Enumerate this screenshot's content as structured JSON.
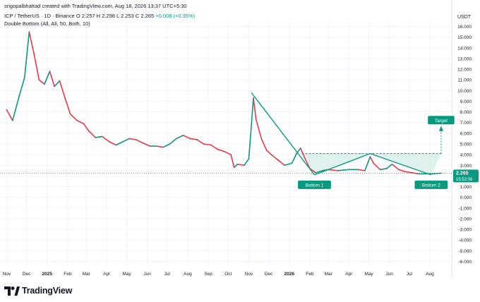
{
  "header": {
    "author_line": "srigopalbhattad created with TradingView.com, Aug 18, 2026 13:37 UTC+5:30",
    "symbol": "ICP / TetherUS · 1D · Binance",
    "ohlc": {
      "o": "O 2.257",
      "h": "H 2.298",
      "l": "L 2.253",
      "c": "C 2.265",
      "change": "+0.008 (+0.35%)"
    },
    "indicator": "Double Bottom (All, All, 50, Both, 10)"
  },
  "axis": {
    "currency": "USDT"
  },
  "price_label": {
    "value": "2.265",
    "countdown": "15:52:08"
  },
  "branding": {
    "name": "TradingView"
  },
  "colors": {
    "up": "#089981",
    "down": "#f23645",
    "pattern": "#089981",
    "fill": "#d1ede6",
    "label_bg": "#089981"
  },
  "chart_data": {
    "type": "line",
    "y_ticks": [
      "16.000",
      "15.000",
      "14.000",
      "13.000",
      "12.000",
      "11.000",
      "10.000",
      "9.000",
      "8.000",
      "7.000",
      "6.000",
      "5.000",
      "4.000",
      "3.000",
      "2.000",
      "1.000",
      "0.000",
      "-1.000",
      "-2.000",
      "-3.000",
      "-4.000",
      "-5.000",
      "-6.000"
    ],
    "x_ticks": [
      "Nov",
      "Dec",
      "2025",
      "Feb",
      "Mar",
      "Apr",
      "May",
      "Jun",
      "Jul",
      "Aug",
      "Sep",
      "Oct",
      "Nov",
      "Dec",
      "2026",
      "Feb",
      "Mar",
      "Apr",
      "May",
      "Jun",
      "Jul",
      "Aug"
    ],
    "ylim": [
      -6.5,
      16.5
    ],
    "grid": true,
    "price_series": [
      [
        "2024-11-01",
        8.2
      ],
      [
        "2024-11-10",
        7.2
      ],
      [
        "2024-11-20",
        9.5
      ],
      [
        "2024-11-28",
        11.2
      ],
      [
        "2024-12-05",
        15.5
      ],
      [
        "2024-12-12",
        13.5
      ],
      [
        "2024-12-20",
        11.0
      ],
      [
        "2024-12-28",
        10.6
      ],
      [
        "2025-01-05",
        11.8
      ],
      [
        "2025-01-12",
        10.4
      ],
      [
        "2025-01-20",
        10.9
      ],
      [
        "2025-01-28",
        9.3
      ],
      [
        "2025-02-05",
        7.8
      ],
      [
        "2025-02-15",
        7.2
      ],
      [
        "2025-02-25",
        6.9
      ],
      [
        "2025-03-05",
        6.2
      ],
      [
        "2025-03-15",
        5.6
      ],
      [
        "2025-03-25",
        5.7
      ],
      [
        "2025-04-05",
        5.2
      ],
      [
        "2025-04-15",
        4.9
      ],
      [
        "2025-04-25",
        5.2
      ],
      [
        "2025-05-05",
        5.5
      ],
      [
        "2025-05-15",
        5.4
      ],
      [
        "2025-05-25",
        5.1
      ],
      [
        "2025-06-05",
        4.8
      ],
      [
        "2025-06-15",
        4.8
      ],
      [
        "2025-06-25",
        4.7
      ],
      [
        "2025-07-05",
        5.0
      ],
      [
        "2025-07-15",
        5.5
      ],
      [
        "2025-07-25",
        5.8
      ],
      [
        "2025-08-05",
        5.5
      ],
      [
        "2025-08-15",
        5.4
      ],
      [
        "2025-08-25",
        5.0
      ],
      [
        "2025-09-05",
        4.9
      ],
      [
        "2025-09-15",
        4.5
      ],
      [
        "2025-09-25",
        4.3
      ],
      [
        "2025-10-05",
        4.0
      ],
      [
        "2025-10-10",
        2.8
      ],
      [
        "2025-10-15",
        3.1
      ],
      [
        "2025-10-25",
        3.0
      ],
      [
        "2025-11-01",
        3.6
      ],
      [
        "2025-11-05",
        6.8
      ],
      [
        "2025-11-08",
        9.3
      ],
      [
        "2025-11-12",
        7.3
      ],
      [
        "2025-11-20",
        5.5
      ],
      [
        "2025-11-28",
        4.4
      ],
      [
        "2025-12-05",
        4.0
      ],
      [
        "2025-12-15",
        3.5
      ],
      [
        "2025-12-25",
        3.0
      ],
      [
        "2026-01-05",
        3.2
      ],
      [
        "2026-01-12",
        4.1
      ],
      [
        "2026-01-18",
        4.6
      ],
      [
        "2026-01-25",
        3.6
      ],
      [
        "2026-02-01",
        2.7
      ],
      [
        "2026-02-10",
        2.3
      ],
      [
        "2026-02-20",
        2.5
      ],
      [
        "2026-03-01",
        2.6
      ],
      [
        "2026-03-15",
        2.5
      ],
      [
        "2026-04-01",
        2.6
      ],
      [
        "2026-04-15",
        2.6
      ],
      [
        "2026-04-25",
        2.5
      ],
      [
        "2026-05-03",
        3.8
      ],
      [
        "2026-05-08",
        3.2
      ],
      [
        "2026-05-18",
        2.6
      ],
      [
        "2026-05-28",
        2.7
      ],
      [
        "2026-06-05",
        3.1
      ],
      [
        "2026-06-15",
        2.6
      ],
      [
        "2026-06-25",
        2.4
      ],
      [
        "2026-07-05",
        2.3
      ],
      [
        "2026-07-15",
        2.2
      ],
      [
        "2026-07-25",
        2.2
      ],
      [
        "2026-08-05",
        2.2
      ],
      [
        "2026-08-18",
        2.265
      ]
    ],
    "pattern_lines": [
      {
        "name": "pattern-leg-1",
        "from": [
          "2025-11-05",
          9.8
        ],
        "to": [
          "2026-02-08",
          2.1
        ]
      },
      {
        "name": "pattern-leg-2",
        "from": [
          "2026-02-08",
          2.1
        ],
        "to": [
          "2026-05-03",
          4.1
        ]
      },
      {
        "name": "pattern-leg-3",
        "from": [
          "2026-05-03",
          4.1
        ],
        "to": [
          "2026-08-03",
          2.1
        ]
      },
      {
        "name": "neckline",
        "from": [
          "2026-01-20",
          4.1
        ],
        "to": [
          "2026-08-18",
          4.1
        ]
      }
    ],
    "annotations": [
      {
        "text": "Bottom 1",
        "x": "2026-02-08",
        "y": 2.1
      },
      {
        "text": "Bottom 2",
        "x": "2026-08-03",
        "y": 2.1
      },
      {
        "text": "Target",
        "x": "2026-08-18",
        "y": 6.9
      }
    ]
  }
}
